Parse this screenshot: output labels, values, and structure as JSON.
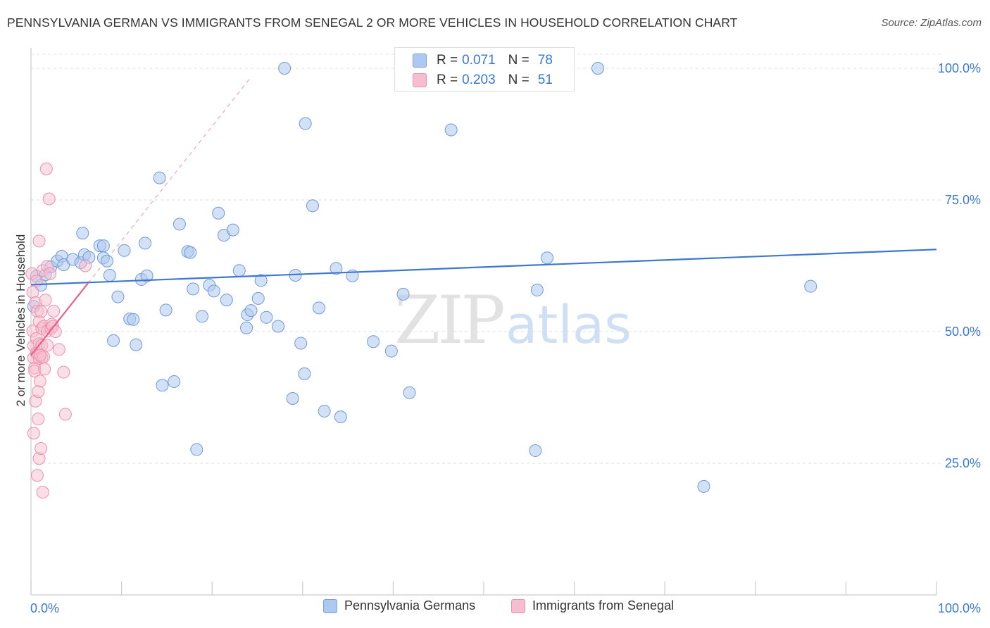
{
  "title": "PENNSYLVANIA GERMAN VS IMMIGRANTS FROM SENEGAL 2 OR MORE VEHICLES IN HOUSEHOLD CORRELATION CHART",
  "source": "Source: ZipAtlas.com",
  "watermark": {
    "zip": "ZIP",
    "atlas": "atlas"
  },
  "legend_stats": [
    {
      "r_label": "R =",
      "r_value": "0.071",
      "n_label": "N =",
      "n_value": "78",
      "fill": "#aec9ef",
      "stroke": "#7aa3dd"
    },
    {
      "r_label": "R =",
      "r_value": "0.203",
      "n_label": "N =",
      "n_value": "51",
      "fill": "#f6bfd0",
      "stroke": "#ec8fae"
    }
  ],
  "chart_data": {
    "type": "scatter",
    "title": "PENNSYLVANIA GERMAN VS IMMIGRANTS FROM SENEGAL 2 OR MORE VEHICLES IN HOUSEHOLD CORRELATION CHART",
    "xlabel": "",
    "ylabel": "2 or more Vehicles in Household",
    "xlim": [
      0,
      100
    ],
    "ylim": [
      0,
      102
    ],
    "x_tick_labels": [
      "0.0%",
      "100.0%"
    ],
    "y_tick_labels": [
      "100.0%",
      "75.0%",
      "50.0%",
      "25.0%"
    ],
    "y_ticks": [
      100,
      75,
      50,
      25
    ],
    "grid": true,
    "legend_position": "bottom",
    "colors": {
      "blue": "#3b78d1",
      "pink": "#e8608c",
      "blue_fill": "#aec9ef",
      "pink_fill": "#f6bfd0"
    },
    "series": [
      {
        "name": "Pennsylvania Germans",
        "color": "#3b78d1",
        "trend": {
          "x": [
            0,
            100
          ],
          "y": [
            58.9,
            65.6
          ]
        },
        "points": [
          [
            0.3,
            54.8
          ],
          [
            0.6,
            60.5
          ],
          [
            1.6,
            60.8
          ],
          [
            1.1,
            58.8
          ],
          [
            2.2,
            62.3
          ],
          [
            2.9,
            63.4
          ],
          [
            3.4,
            64.3
          ],
          [
            3.6,
            62.7
          ],
          [
            4.6,
            63.7
          ],
          [
            5.5,
            63.1
          ],
          [
            5.9,
            64.6
          ],
          [
            5.7,
            68.7
          ],
          [
            6.4,
            64.1
          ],
          [
            7.6,
            66.3
          ],
          [
            8.0,
            66.3
          ],
          [
            8.0,
            64.0
          ],
          [
            8.4,
            63.4
          ],
          [
            8.7,
            60.7
          ],
          [
            9.1,
            48.3
          ],
          [
            9.6,
            56.6
          ],
          [
            10.3,
            65.4
          ],
          [
            10.9,
            52.4
          ],
          [
            11.3,
            52.3
          ],
          [
            11.6,
            47.5
          ],
          [
            12.2,
            59.9
          ],
          [
            12.8,
            60.6
          ],
          [
            12.6,
            66.8
          ],
          [
            14.2,
            79.2
          ],
          [
            14.5,
            39.8
          ],
          [
            14.9,
            54.1
          ],
          [
            15.8,
            40.5
          ],
          [
            16.4,
            70.4
          ],
          [
            17.3,
            65.2
          ],
          [
            17.6,
            65.0
          ],
          [
            17.9,
            58.1
          ],
          [
            18.3,
            27.6
          ],
          [
            18.9,
            52.9
          ],
          [
            19.7,
            58.8
          ],
          [
            20.2,
            57.7
          ],
          [
            20.7,
            72.5
          ],
          [
            21.3,
            68.3
          ],
          [
            21.6,
            56.0
          ],
          [
            22.3,
            69.3
          ],
          [
            23.0,
            61.6
          ],
          [
            23.8,
            50.7
          ],
          [
            23.9,
            53.2
          ],
          [
            24.3,
            54.0
          ],
          [
            25.1,
            56.3
          ],
          [
            25.4,
            59.7
          ],
          [
            26.0,
            52.7
          ],
          [
            27.3,
            51.0
          ],
          [
            28.0,
            100.0
          ],
          [
            28.9,
            37.3
          ],
          [
            29.2,
            60.7
          ],
          [
            29.8,
            47.8
          ],
          [
            30.2,
            42.0
          ],
          [
            30.3,
            89.5
          ],
          [
            31.1,
            73.9
          ],
          [
            31.8,
            54.5
          ],
          [
            32.4,
            34.9
          ],
          [
            33.7,
            62.0
          ],
          [
            34.2,
            33.8
          ],
          [
            35.5,
            60.6
          ],
          [
            37.8,
            48.1
          ],
          [
            39.8,
            46.3
          ],
          [
            41.1,
            57.1
          ],
          [
            41.8,
            38.4
          ],
          [
            45.0,
            100.0
          ],
          [
            46.4,
            88.3
          ],
          [
            50.4,
            100.0
          ],
          [
            54.1,
            100.0
          ],
          [
            55.7,
            27.4
          ],
          [
            55.9,
            57.9
          ],
          [
            57.0,
            64.0
          ],
          [
            62.6,
            100.0
          ],
          [
            74.3,
            20.6
          ],
          [
            86.1,
            58.6
          ],
          [
            49.0,
            100.0
          ]
        ]
      },
      {
        "name": "Immigrants from Senegal",
        "color": "#e8608c",
        "trend": {
          "x": [
            0,
            6.3
          ],
          "y": [
            45.5,
            59.2
          ]
        },
        "trend_extension": {
          "x": [
            6.3,
            24.1
          ],
          "y": [
            59.2,
            97.9
          ]
        },
        "points": [
          [
            0.1,
            61.0
          ],
          [
            0.2,
            57.5
          ],
          [
            0.2,
            50.1
          ],
          [
            0.3,
            47.3
          ],
          [
            0.3,
            45.0
          ],
          [
            0.4,
            43.1
          ],
          [
            0.4,
            42.5
          ],
          [
            0.5,
            36.8
          ],
          [
            0.3,
            30.7
          ],
          [
            0.5,
            55.5
          ],
          [
            0.6,
            48.7
          ],
          [
            0.6,
            46.0
          ],
          [
            0.7,
            53.9
          ],
          [
            0.7,
            45.8
          ],
          [
            0.8,
            38.6
          ],
          [
            0.8,
            33.4
          ],
          [
            0.7,
            22.7
          ],
          [
            0.9,
            67.2
          ],
          [
            0.9,
            51.9
          ],
          [
            0.9,
            47.7
          ],
          [
            0.9,
            44.9
          ],
          [
            1.0,
            40.6
          ],
          [
            0.9,
            25.9
          ],
          [
            1.1,
            53.8
          ],
          [
            1.2,
            50.6
          ],
          [
            1.2,
            47.4
          ],
          [
            1.2,
            45.1
          ],
          [
            1.1,
            27.8
          ],
          [
            1.3,
            61.6
          ],
          [
            1.4,
            51.0
          ],
          [
            1.4,
            45.2
          ],
          [
            1.5,
            42.9
          ],
          [
            1.3,
            19.5
          ],
          [
            1.6,
            56.0
          ],
          [
            1.7,
            80.9
          ],
          [
            1.8,
            62.4
          ],
          [
            1.8,
            50.1
          ],
          [
            1.8,
            47.4
          ],
          [
            2.0,
            75.2
          ],
          [
            2.1,
            61.0
          ],
          [
            2.2,
            50.6
          ],
          [
            2.3,
            51.4
          ],
          [
            2.4,
            51.0
          ],
          [
            2.5,
            53.9
          ],
          [
            2.7,
            50.0
          ],
          [
            3.1,
            46.6
          ],
          [
            3.6,
            42.3
          ],
          [
            3.8,
            34.3
          ],
          [
            6.0,
            62.5
          ],
          [
            1.0,
            45.5
          ],
          [
            0.6,
            59.6
          ]
        ]
      }
    ]
  }
}
